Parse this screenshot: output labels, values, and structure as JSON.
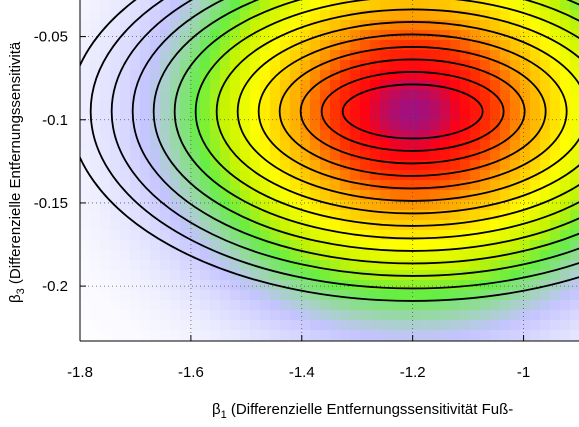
{
  "chart_data": {
    "type": "heatmap",
    "title": "",
    "xlabel": {
      "symbol": "β",
      "subscript": "1",
      "text": " (Differenzielle Entfernungssensitivität Fuß-"
    },
    "ylabel": {
      "symbol": "β",
      "subscript": "3",
      "text": " (Differenzielle Entfernungssensitivitä"
    },
    "xlim": [
      -1.8,
      -0.9
    ],
    "ylim": [
      -0.233,
      -0.028
    ],
    "x_ticks": [
      {
        "value": -1.8,
        "label": "-1.8"
      },
      {
        "value": -1.6,
        "label": "-1.6"
      },
      {
        "value": -1.4,
        "label": "-1.4"
      },
      {
        "value": -1.2,
        "label": "-1.2"
      },
      {
        "value": -1.0,
        "label": "-1"
      }
    ],
    "y_ticks": [
      {
        "value": -0.05,
        "label": "-0.05"
      },
      {
        "value": -0.1,
        "label": "-0.1"
      },
      {
        "value": -0.15,
        "label": "-0.15"
      },
      {
        "value": -0.2,
        "label": "-0.2"
      }
    ],
    "grid": true,
    "surface": {
      "peak": {
        "x": -1.2,
        "y": -0.095
      },
      "contour_levels": 14,
      "colormap": [
        "#ffffff",
        "#c4c4ff",
        "#66ee44",
        "#c8f400",
        "#ffff00",
        "#ffaa00",
        "#ff3300",
        "#ff0011",
        "#a01080"
      ]
    },
    "contour_color": "#000000"
  }
}
